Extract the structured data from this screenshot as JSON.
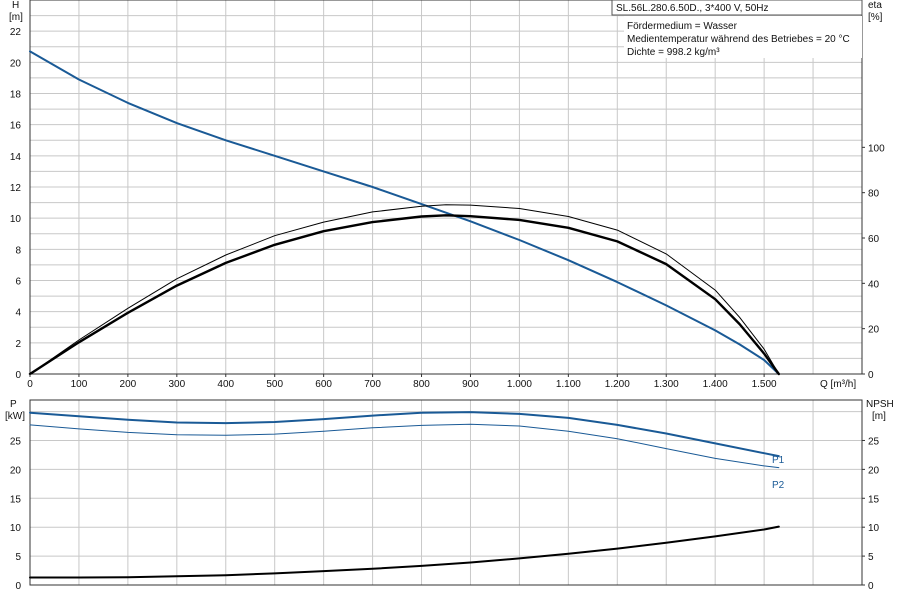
{
  "chart_data": [
    {
      "type": "line",
      "title": "SL.56L.280.6.50D., 3*400 V, 50Hz",
      "info": [
        "Fördermedium = Wasser",
        "Medientemperatur während des Betriebes = 20 °C",
        "Dichte = 998.2 kg/m³"
      ],
      "ylabel": "H",
      "yunit": "[m]",
      "y2label": "eta",
      "y2unit": "[%]",
      "xlabel": "Q [m³/h]",
      "xlim": [
        0,
        1700
      ],
      "ylim": [
        0,
        24
      ],
      "y2lim": [
        0,
        165
      ],
      "xticks": [
        0,
        100,
        200,
        300,
        400,
        500,
        600,
        700,
        800,
        900,
        1000,
        1100,
        1200,
        1300,
        1400,
        1500
      ],
      "xtick_labels": [
        "0",
        "100",
        "200",
        "300",
        "400",
        "500",
        "600",
        "700",
        "800",
        "900",
        "1.000",
        "1.100",
        "1.200",
        "1.300",
        "1.400",
        "1.500"
      ],
      "yticks": [
        0,
        2,
        4,
        6,
        8,
        10,
        12,
        14,
        16,
        18,
        20,
        22
      ],
      "y2ticks": [
        0,
        20,
        40,
        60,
        80,
        100
      ],
      "grid": true,
      "series": [
        {
          "axis": "left",
          "color": "#1a5a96",
          "width": 2,
          "x": [
            0,
            100,
            200,
            300,
            400,
            500,
            600,
            700,
            800,
            900,
            1000,
            1100,
            1200,
            1300,
            1400,
            1450,
            1500,
            1530
          ],
          "y": [
            20.7,
            18.9,
            17.4,
            16.1,
            15.0,
            14.0,
            13.0,
            12.0,
            10.9,
            9.8,
            8.6,
            7.3,
            5.9,
            4.4,
            2.8,
            1.9,
            0.9,
            0
          ]
        },
        {
          "axis": "right",
          "color": "#000000",
          "width": 2.4,
          "x": [
            0,
            100,
            200,
            300,
            400,
            500,
            600,
            700,
            800,
            850,
            900,
            1000,
            1100,
            1200,
            1300,
            1400,
            1450,
            1500,
            1530
          ],
          "y": [
            0,
            14,
            27,
            39,
            49,
            57,
            63,
            67,
            69.5,
            70,
            69.6,
            68,
            64.5,
            58.5,
            48.5,
            33,
            22,
            9,
            0
          ]
        },
        {
          "axis": "right",
          "color": "#000000",
          "width": 1,
          "x": [
            0,
            100,
            200,
            300,
            400,
            500,
            600,
            700,
            800,
            850,
            900,
            1000,
            1100,
            1200,
            1300,
            1400,
            1450,
            1500,
            1530
          ],
          "y": [
            0,
            15,
            29,
            42,
            52.5,
            61,
            67,
            71.5,
            74,
            74.7,
            74.5,
            73,
            69.5,
            63.5,
            53,
            37,
            25,
            11,
            0
          ]
        }
      ]
    },
    {
      "type": "line",
      "ylabel": "P",
      "yunit": "[kW]",
      "y2label": "NPSH",
      "y2unit": "[m]",
      "xlim": [
        0,
        1700
      ],
      "ylim": [
        0,
        32
      ],
      "y2lim": [
        0,
        32
      ],
      "yticks": [
        0,
        5,
        10,
        15,
        20,
        25
      ],
      "y2ticks": [
        0,
        5,
        10,
        15,
        20,
        25
      ],
      "grid": true,
      "series": [
        {
          "name": "P1",
          "axis": "left",
          "color": "#1a5a96",
          "width": 2,
          "x": [
            0,
            100,
            200,
            300,
            400,
            500,
            600,
            700,
            800,
            900,
            1000,
            1100,
            1200,
            1300,
            1400,
            1500,
            1530
          ],
          "y": [
            29.8,
            29.2,
            28.6,
            28.1,
            28.0,
            28.2,
            28.7,
            29.3,
            29.8,
            29.9,
            29.6,
            28.9,
            27.7,
            26.2,
            24.5,
            22.8,
            22.3
          ]
        },
        {
          "name": "P2",
          "axis": "left",
          "color": "#1a5a96",
          "width": 1,
          "x": [
            0,
            100,
            200,
            300,
            400,
            500,
            600,
            700,
            800,
            900,
            1000,
            1100,
            1200,
            1300,
            1400,
            1500,
            1530
          ],
          "y": [
            27.7,
            27.0,
            26.4,
            26.0,
            25.9,
            26.1,
            26.6,
            27.2,
            27.6,
            27.8,
            27.5,
            26.6,
            25.3,
            23.6,
            21.9,
            20.6,
            20.3
          ]
        },
        {
          "axis": "right",
          "color": "#000000",
          "width": 2,
          "x": [
            0,
            100,
            200,
            300,
            400,
            500,
            600,
            700,
            800,
            900,
            1000,
            1100,
            1200,
            1300,
            1400,
            1500,
            1530
          ],
          "y": [
            1.3,
            1.3,
            1.35,
            1.5,
            1.7,
            2.0,
            2.4,
            2.8,
            3.3,
            3.9,
            4.6,
            5.4,
            6.3,
            7.3,
            8.4,
            9.6,
            10.1
          ]
        }
      ]
    }
  ]
}
